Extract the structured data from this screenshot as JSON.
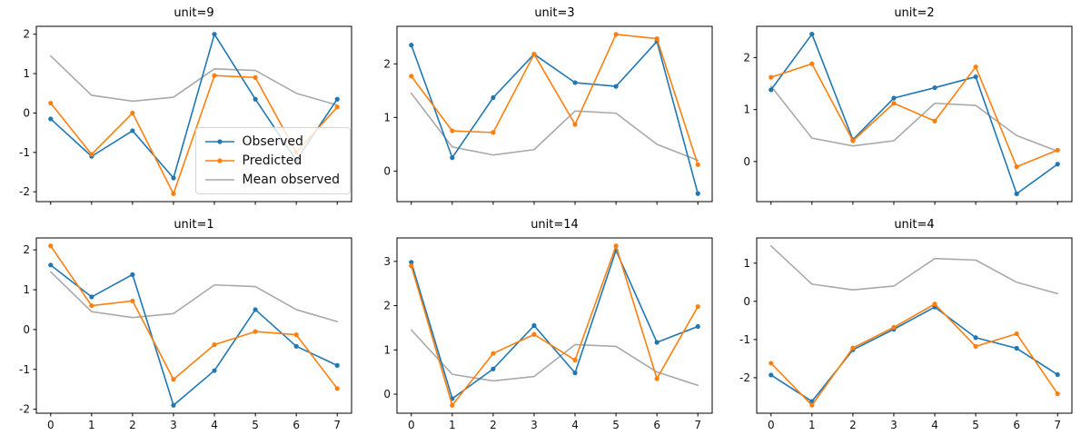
{
  "figure": {
    "background": "#ffffff"
  },
  "colors": {
    "observed": "#1f77b4",
    "predicted": "#ff7f0e",
    "mean_observed": "#a9a9a9",
    "axis": "#000000"
  },
  "legend": {
    "position": "inside-first-subplot-lower-right",
    "items": [
      {
        "label": "Observed",
        "color": "#1f77b4",
        "marker": true
      },
      {
        "label": "Predicted",
        "color": "#ff7f0e",
        "marker": true
      },
      {
        "label": "Mean observed",
        "color": "#a9a9a9",
        "marker": false
      }
    ]
  },
  "chart_data": [
    {
      "type": "line",
      "title": "unit=9",
      "x": [
        0,
        1,
        2,
        3,
        4,
        5,
        6,
        7
      ],
      "xticks": [
        0,
        1,
        2,
        3,
        4,
        5,
        6,
        7
      ],
      "yticks": [
        -2,
        -1,
        0,
        1,
        2
      ],
      "xlim": [
        -0.35,
        7.35
      ],
      "ylim": [
        -2.25,
        2.2
      ],
      "show_xlabels": false,
      "grid": false,
      "series": [
        {
          "name": "Mean observed",
          "color": "#a9a9a9",
          "marker": false,
          "values": [
            1.45,
            0.45,
            0.3,
            0.4,
            1.12,
            1.08,
            0.5,
            0.2
          ]
        },
        {
          "name": "Observed",
          "color": "#1f77b4",
          "marker": true,
          "values": [
            -0.15,
            -1.1,
            -0.45,
            -1.65,
            2.0,
            0.35,
            -1.2,
            0.35
          ]
        },
        {
          "name": "Predicted",
          "color": "#ff7f0e",
          "marker": true,
          "values": [
            0.25,
            -1.05,
            0.0,
            -2.05,
            0.95,
            0.9,
            -1.0,
            0.15
          ]
        }
      ]
    },
    {
      "type": "line",
      "title": "unit=3",
      "x": [
        0,
        1,
        2,
        3,
        4,
        5,
        6,
        7
      ],
      "xticks": [
        0,
        1,
        2,
        3,
        4,
        5,
        6,
        7
      ],
      "yticks": [
        0,
        1,
        2
      ],
      "xlim": [
        -0.35,
        7.35
      ],
      "ylim": [
        -0.57,
        2.7
      ],
      "show_xlabels": false,
      "grid": false,
      "series": [
        {
          "name": "Mean observed",
          "color": "#a9a9a9",
          "marker": false,
          "values": [
            1.45,
            0.45,
            0.3,
            0.4,
            1.12,
            1.08,
            0.5,
            0.2
          ]
        },
        {
          "name": "Observed",
          "color": "#1f77b4",
          "marker": true,
          "values": [
            2.35,
            0.25,
            1.37,
            2.18,
            1.65,
            1.58,
            2.42,
            -0.42
          ]
        },
        {
          "name": "Predicted",
          "color": "#ff7f0e",
          "marker": true,
          "values": [
            1.77,
            0.75,
            0.72,
            2.18,
            0.87,
            2.55,
            2.47,
            0.12
          ]
        }
      ]
    },
    {
      "type": "line",
      "title": "unit=2",
      "x": [
        0,
        1,
        2,
        3,
        4,
        5,
        6,
        7
      ],
      "xticks": [
        0,
        1,
        2,
        3,
        4,
        5,
        6,
        7
      ],
      "yticks": [
        0,
        1,
        2
      ],
      "xlim": [
        -0.35,
        7.35
      ],
      "ylim": [
        -0.77,
        2.6
      ],
      "show_xlabels": false,
      "grid": false,
      "series": [
        {
          "name": "Mean observed",
          "color": "#a9a9a9",
          "marker": false,
          "values": [
            1.45,
            0.45,
            0.3,
            0.4,
            1.12,
            1.08,
            0.5,
            0.2
          ]
        },
        {
          "name": "Observed",
          "color": "#1f77b4",
          "marker": true,
          "values": [
            1.38,
            2.45,
            0.42,
            1.22,
            1.42,
            1.63,
            -0.62,
            -0.05
          ]
        },
        {
          "name": "Predicted",
          "color": "#ff7f0e",
          "marker": true,
          "values": [
            1.62,
            1.88,
            0.4,
            1.12,
            0.78,
            1.82,
            -0.1,
            0.22
          ]
        }
      ]
    },
    {
      "type": "line",
      "title": "unit=1",
      "x": [
        0,
        1,
        2,
        3,
        4,
        5,
        6,
        7
      ],
      "xticks": [
        0,
        1,
        2,
        3,
        4,
        5,
        6,
        7
      ],
      "yticks": [
        -2,
        -1,
        0,
        1,
        2
      ],
      "xlim": [
        -0.35,
        7.35
      ],
      "ylim": [
        -2.1,
        2.3
      ],
      "show_xlabels": true,
      "grid": false,
      "series": [
        {
          "name": "Mean observed",
          "color": "#a9a9a9",
          "marker": false,
          "values": [
            1.45,
            0.45,
            0.3,
            0.4,
            1.12,
            1.08,
            0.5,
            0.2
          ]
        },
        {
          "name": "Observed",
          "color": "#1f77b4",
          "marker": true,
          "values": [
            1.62,
            0.82,
            1.38,
            -1.9,
            -1.03,
            0.5,
            -0.42,
            -0.9
          ]
        },
        {
          "name": "Predicted",
          "color": "#ff7f0e",
          "marker": true,
          "values": [
            2.1,
            0.6,
            0.72,
            -1.25,
            -0.38,
            -0.05,
            -0.13,
            -1.48
          ]
        }
      ]
    },
    {
      "type": "line",
      "title": "unit=14",
      "x": [
        0,
        1,
        2,
        3,
        4,
        5,
        6,
        7
      ],
      "xticks": [
        0,
        1,
        2,
        3,
        4,
        5,
        6,
        7
      ],
      "yticks": [
        0,
        1,
        2,
        3
      ],
      "xlim": [
        -0.35,
        7.35
      ],
      "ylim": [
        -0.43,
        3.53
      ],
      "show_xlabels": true,
      "grid": false,
      "series": [
        {
          "name": "Mean observed",
          "color": "#a9a9a9",
          "marker": false,
          "values": [
            1.45,
            0.45,
            0.3,
            0.4,
            1.12,
            1.08,
            0.5,
            0.2
          ]
        },
        {
          "name": "Observed",
          "color": "#1f77b4",
          "marker": true,
          "values": [
            2.98,
            -0.1,
            0.57,
            1.55,
            0.48,
            3.25,
            1.17,
            1.53
          ]
        },
        {
          "name": "Predicted",
          "color": "#ff7f0e",
          "marker": true,
          "values": [
            2.9,
            -0.25,
            0.92,
            1.35,
            0.77,
            3.35,
            0.35,
            1.98
          ]
        }
      ]
    },
    {
      "type": "line",
      "title": "unit=4",
      "x": [
        0,
        1,
        2,
        3,
        4,
        5,
        6,
        7
      ],
      "xticks": [
        0,
        1,
        2,
        3,
        4,
        5,
        6,
        7
      ],
      "yticks": [
        -2,
        -1,
        0,
        1
      ],
      "xlim": [
        -0.35,
        7.35
      ],
      "ylim": [
        -2.93,
        1.66
      ],
      "show_xlabels": true,
      "grid": false,
      "series": [
        {
          "name": "Mean observed",
          "color": "#a9a9a9",
          "marker": false,
          "values": [
            1.45,
            0.45,
            0.3,
            0.4,
            1.12,
            1.08,
            0.5,
            0.2
          ]
        },
        {
          "name": "Observed",
          "color": "#1f77b4",
          "marker": true,
          "values": [
            -1.93,
            -2.62,
            -1.27,
            -0.73,
            -0.15,
            -0.95,
            -1.23,
            -1.92
          ]
        },
        {
          "name": "Predicted",
          "color": "#ff7f0e",
          "marker": true,
          "values": [
            -1.62,
            -2.72,
            -1.22,
            -0.68,
            -0.07,
            -1.18,
            -0.85,
            -2.42
          ]
        }
      ]
    }
  ]
}
